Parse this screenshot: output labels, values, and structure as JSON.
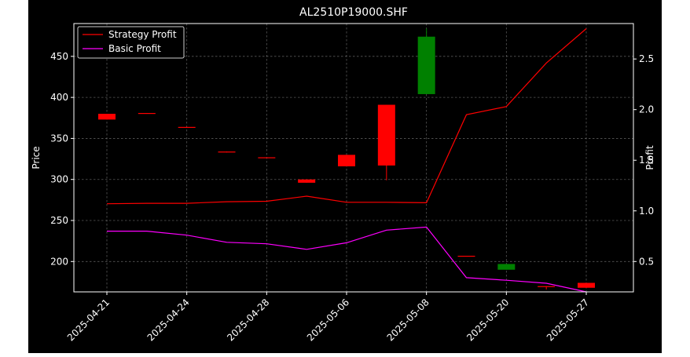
{
  "chart_data": {
    "type": "candlestick+line",
    "title": "AL2510P19000.SHF",
    "ylabel_left": "Price",
    "ylabel_right": "Profit",
    "ylim_left": [
      163,
      490
    ],
    "ylim_right": [
      0.2,
      2.85
    ],
    "yticks_left": [
      200,
      250,
      300,
      350,
      400,
      450
    ],
    "yticks_right": [
      0.5,
      1.0,
      1.5,
      2.0,
      2.5
    ],
    "x_tick_labels": [
      "2025-04-21",
      "2025-04-24",
      "2025-04-28",
      "2025-05-06",
      "2025-05-08",
      "2025-05-20",
      "2025-05-27"
    ],
    "x_tick_positions": [
      0,
      2,
      4,
      6,
      8,
      10,
      12
    ],
    "grid": true,
    "legend_position": "upper-left",
    "candles": [
      {
        "open": 380,
        "close": 373,
        "high": 380,
        "low": 373,
        "color": "#ff0000"
      },
      {
        "open": 381,
        "close": 380,
        "high": 381,
        "low": 380,
        "color": "#ff0000"
      },
      {
        "open": 364,
        "close": 363,
        "high": 364,
        "low": 363,
        "color": "#ff0000"
      },
      {
        "open": 334,
        "close": 333,
        "high": 334,
        "low": 333,
        "color": "#ff0000"
      },
      {
        "open": 327,
        "close": 326,
        "high": 327,
        "low": 326,
        "color": "#ff0000"
      },
      {
        "open": 300,
        "close": 296,
        "high": 300,
        "low": 296,
        "color": "#ff0000"
      },
      {
        "open": 330,
        "close": 316,
        "high": 330,
        "low": 316,
        "color": "#ff0000"
      },
      {
        "open": 391,
        "close": 317,
        "high": 391,
        "low": 299,
        "color": "#ff0000"
      },
      {
        "open": 404,
        "close": 474,
        "high": 484,
        "low": 404,
        "color": "#008000"
      },
      {
        "open": 207,
        "close": 206,
        "high": 207,
        "low": 206,
        "color": "#ff0000"
      },
      {
        "open": 190,
        "close": 197,
        "high": 197,
        "low": 190,
        "color": "#008000"
      },
      {
        "open": 170,
        "close": 169,
        "high": 170,
        "low": 166,
        "color": "#ff0000"
      },
      {
        "open": 174,
        "close": 168,
        "high": 174,
        "low": 168,
        "color": "#ff0000"
      }
    ],
    "series": [
      {
        "name": "Strategy Profit",
        "color": "#ff0000",
        "values": [
          1.07,
          1.075,
          1.075,
          1.09,
          1.095,
          1.145,
          1.085,
          1.085,
          1.08,
          1.95,
          2.03,
          2.46,
          2.8
        ]
      },
      {
        "name": "Basic Profit",
        "color": "#ff00ff",
        "values": [
          0.8,
          0.8,
          0.76,
          0.69,
          0.675,
          0.62,
          0.685,
          0.81,
          0.84,
          0.34,
          0.315,
          0.285,
          0.2
        ]
      }
    ]
  }
}
